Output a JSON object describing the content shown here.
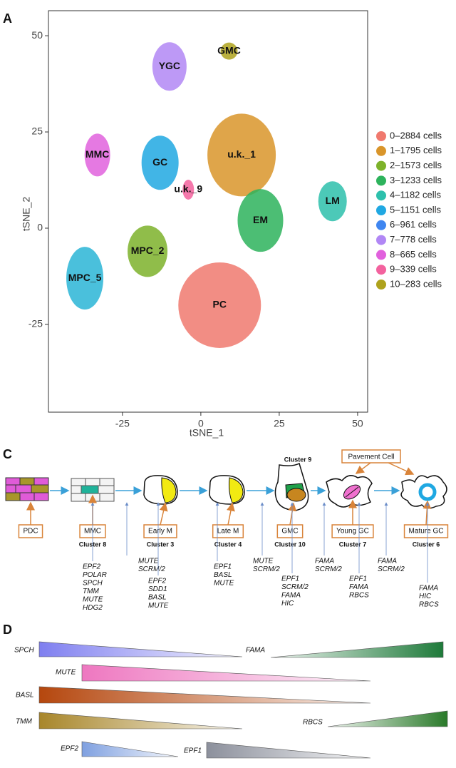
{
  "chart_data": {
    "type": "scatter",
    "panel": "A",
    "xlabel": "tSNE_1",
    "ylabel": "tSNE_2",
    "xlim": [
      -48.6,
      53.2
    ],
    "ylim": [
      -47.8,
      56.5
    ],
    "xticks": [
      -25,
      0,
      25,
      50
    ],
    "yticks": [
      -25,
      0,
      25,
      50
    ],
    "clusters": [
      {
        "label": "PC",
        "x": 6,
        "y": -20,
        "color": "#F0796E"
      },
      {
        "label": "u.k._1",
        "x": 13,
        "y": 19,
        "color": "#D9952A"
      },
      {
        "label": "EM",
        "x": 19,
        "y": 2,
        "color": "#2DB35C"
      },
      {
        "label": "LM",
        "x": 42,
        "y": 7,
        "color": "#2DC0AC"
      },
      {
        "label": "GC",
        "x": -13,
        "y": 17,
        "color": "#20A8E2"
      },
      {
        "label": "MMC",
        "x": -33,
        "y": 19,
        "color": "#E161DD"
      },
      {
        "label": "YGC",
        "x": -10,
        "y": 42,
        "color": "#B187F5"
      },
      {
        "label": "GMC",
        "x": 9,
        "y": 46,
        "color": "#AEA21C"
      },
      {
        "label": "u.k._9",
        "x": -4,
        "y": 10,
        "color": "#F3629E"
      },
      {
        "label": "MPC_2",
        "x": -17,
        "y": -6,
        "color": "#7DB22A"
      },
      {
        "label": "MPC_5",
        "x": -37,
        "y": -13,
        "color": "#2AB5D6"
      }
    ],
    "legend": [
      {
        "name": "0–2884 cells",
        "color": "#F0796E"
      },
      {
        "name": "1–1795 cells",
        "color": "#D9952A"
      },
      {
        "name": "2–1573 cells",
        "color": "#7DB22A"
      },
      {
        "name": "3–1233 cells",
        "color": "#2DB35C"
      },
      {
        "name": "4–1182 cells",
        "color": "#2DC0AC"
      },
      {
        "name": "5–1151 cells",
        "color": "#20A8E2"
      },
      {
        "name": "6–961 cells",
        "color": "#3F86F0"
      },
      {
        "name": "7–778 cells",
        "color": "#B187F5"
      },
      {
        "name": "8–665 cells",
        "color": "#E161DD"
      },
      {
        "name": "9–339 cells",
        "color": "#F3629E"
      },
      {
        "name": "10–283 cells",
        "color": "#AEA21C"
      }
    ]
  },
  "diagram": {
    "panel": "C",
    "stages": [
      {
        "label": "PDC"
      },
      {
        "label": "MMC",
        "cluster": "Cluster 8"
      },
      {
        "label": "Early M",
        "cluster": "Cluster 3"
      },
      {
        "label": "Late M",
        "cluster": "Cluster 4"
      },
      {
        "label": "GMC",
        "cluster": "Cluster 10"
      },
      {
        "label": "Young GC",
        "cluster": "Cluster 7"
      },
      {
        "label": "Mature GC",
        "cluster": "Cluster 6"
      }
    ],
    "extra_cluster": "Cluster 9",
    "pavement": "Pavement Cell",
    "gene_lists": [
      {
        "genes": [
          "EPF2",
          "POLAR",
          "SPCH",
          "TMM",
          "MUTE",
          "HDG2"
        ]
      },
      {
        "genes": [
          "MUTE",
          "SCRM/2"
        ]
      },
      {
        "genes": [
          "EPF2",
          "SDD1",
          "BASL",
          "MUTE"
        ]
      },
      {
        "genes": [
          "EPF1",
          "BASL",
          "MUTE"
        ]
      },
      {
        "genes": [
          "MUTE",
          "SCRM/2"
        ]
      },
      {
        "genes": [
          "EPF1",
          "SCRM/2",
          "FAMA",
          "HIC"
        ]
      },
      {
        "genes": [
          "FAMA",
          "SCRM/2"
        ]
      },
      {
        "genes": [
          "EPF1",
          "FAMA",
          "RBCS"
        ]
      },
      {
        "genes": [
          "FAMA",
          "SCRM/2"
        ]
      },
      {
        "genes": [
          "FAMA",
          "HIC",
          "RBCS"
        ]
      }
    ]
  },
  "gradients": {
    "panel": "D",
    "items": [
      {
        "gene": "SPCH",
        "color": "#7F7FF0",
        "direction": "decreasing"
      },
      {
        "gene": "FAMA",
        "color": "#1E7A3A",
        "direction": "increasing"
      },
      {
        "gene": "MUTE",
        "color": "#EE77C0",
        "direction": "decreasing"
      },
      {
        "gene": "BASL",
        "color": "#B5470E",
        "direction": "decreasing"
      },
      {
        "gene": "TMM",
        "color": "#A8862A",
        "direction": "decreasing"
      },
      {
        "gene": "RBCS",
        "color": "#2A7A2A",
        "direction": "increasing"
      },
      {
        "gene": "EPF2",
        "color": "#7FA0E0",
        "direction": "decreasing"
      },
      {
        "gene": "EPF1",
        "color": "#8C909C",
        "direction": "decreasing"
      }
    ]
  }
}
